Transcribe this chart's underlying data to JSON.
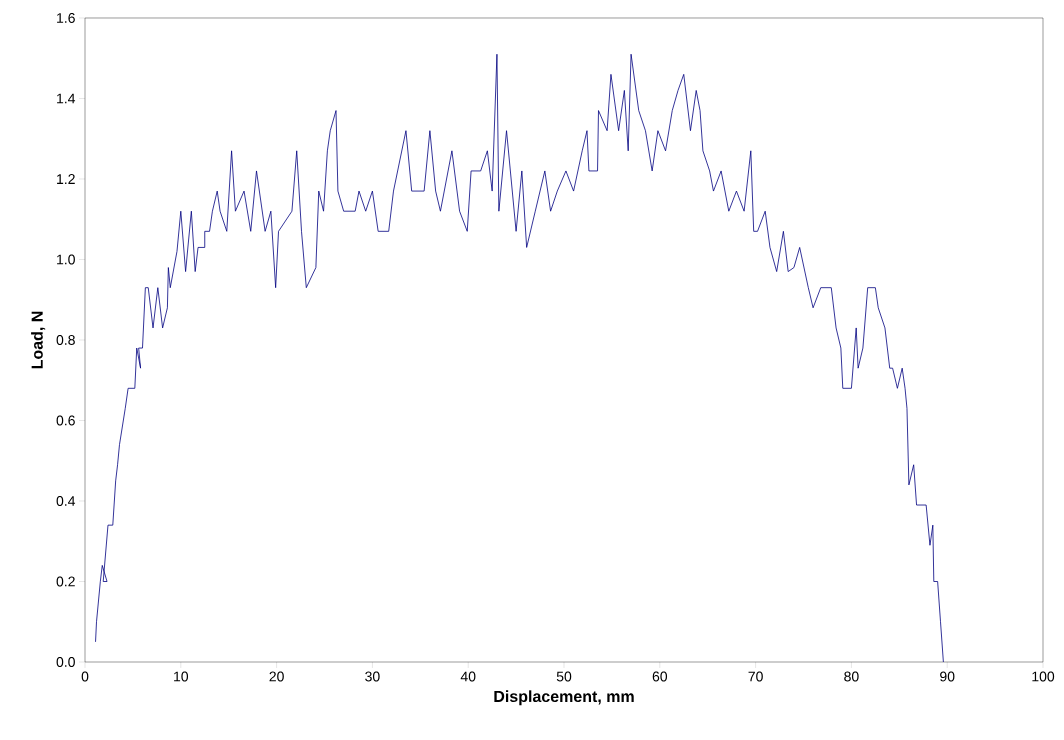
{
  "chart_data": {
    "type": "line",
    "xlabel": "Displacement, mm",
    "ylabel": "Load,  N",
    "xlim": [
      0,
      100
    ],
    "ylim": [
      0,
      1.6
    ],
    "xticks": [
      0,
      10,
      20,
      30,
      40,
      50,
      60,
      70,
      80,
      90,
      100
    ],
    "yticks": [
      {
        "value": 0,
        "label": "0.0"
      },
      {
        "value": 0.2,
        "label": "0.2"
      },
      {
        "value": 0.4,
        "label": "0.4"
      },
      {
        "value": 0.6,
        "label": "0.6"
      },
      {
        "value": 0.8,
        "label": "0.8"
      },
      {
        "value": 1.0,
        "label": "1.0"
      },
      {
        "value": 1.2,
        "label": "1.2"
      },
      {
        "value": 1.4,
        "label": "1.4"
      },
      {
        "value": 1.6,
        "label": "1.6"
      }
    ],
    "grid": false,
    "marker": "none",
    "line_style": "solid",
    "series": [
      {
        "color": "#000080",
        "x": [
          1.1,
          1.2,
          1.6,
          1.8,
          2.3,
          1.9,
          2.4,
          2.9,
          3.2,
          3.4,
          3.6,
          4.2,
          4.5,
          5.2,
          5.4,
          5.8,
          5.6,
          6.0,
          6.3,
          6.6,
          7.1,
          7.6,
          8.1,
          8.6,
          8.7,
          8.9,
          9.6,
          10.0,
          10.5,
          11.1,
          11.5,
          11.8,
          12.5,
          12.5,
          13.0,
          13.3,
          13.8,
          14.1,
          14.8,
          15.3,
          15.7,
          16.6,
          17.3,
          17.9,
          18.8,
          19.4,
          19.9,
          20.2,
          21.6,
          22.1,
          22.6,
          23.1,
          24.1,
          24.4,
          24.9,
          25.3,
          25.6,
          26.2,
          26.4,
          27.0,
          28.2,
          28.6,
          29.3,
          30.0,
          30.6,
          31.7,
          32.2,
          33.5,
          34.1,
          35.4,
          36.0,
          36.6,
          37.1,
          38.3,
          39.1,
          39.9,
          40.3,
          41.3,
          42.0,
          42.5,
          43.0,
          43.2,
          44.0,
          45.0,
          45.6,
          46.1,
          47.0,
          48.0,
          48.6,
          49.3,
          50.2,
          51.0,
          51.9,
          52.4,
          52.6,
          53.5,
          53.6,
          54.5,
          54.9,
          55.7,
          56.3,
          56.7,
          57.0,
          57.8,
          58.5,
          59.2,
          59.8,
          60.6,
          61.3,
          61.9,
          62.5,
          63.2,
          63.8,
          64.2,
          64.5,
          65.2,
          65.6,
          66.4,
          67.2,
          68.0,
          68.8,
          69.5,
          69.8,
          70.2,
          71.0,
          71.5,
          72.2,
          72.9,
          73.4,
          74.0,
          74.6,
          75.5,
          76.0,
          76.8,
          77.9,
          78.4,
          78.9,
          79.1,
          80.0,
          80.5,
          80.7,
          81.2,
          81.7,
          82.5,
          82.8,
          83.5,
          84.0,
          84.3,
          84.8,
          85.3,
          85.6,
          85.8,
          86.0,
          86.5,
          86.8,
          87.8,
          88.2,
          88.5,
          88.6,
          89.0,
          89.3,
          89.6
        ],
        "values": [
          0.05,
          0.1,
          0.2,
          0.24,
          0.2,
          0.2,
          0.34,
          0.34,
          0.45,
          0.49,
          0.54,
          0.63,
          0.68,
          0.68,
          0.78,
          0.73,
          0.78,
          0.78,
          0.93,
          0.93,
          0.83,
          0.93,
          0.83,
          0.88,
          0.98,
          0.93,
          1.02,
          1.12,
          0.97,
          1.12,
          0.97,
          1.03,
          1.03,
          1.07,
          1.07,
          1.12,
          1.17,
          1.12,
          1.07,
          1.27,
          1.12,
          1.17,
          1.07,
          1.22,
          1.07,
          1.12,
          0.93,
          1.07,
          1.12,
          1.27,
          1.07,
          0.93,
          0.98,
          1.17,
          1.12,
          1.27,
          1.32,
          1.37,
          1.17,
          1.12,
          1.12,
          1.17,
          1.12,
          1.17,
          1.07,
          1.07,
          1.17,
          1.32,
          1.17,
          1.17,
          1.32,
          1.17,
          1.12,
          1.27,
          1.12,
          1.07,
          1.22,
          1.22,
          1.27,
          1.17,
          1.51,
          1.12,
          1.32,
          1.07,
          1.22,
          1.03,
          1.12,
          1.22,
          1.12,
          1.17,
          1.22,
          1.17,
          1.27,
          1.32,
          1.22,
          1.22,
          1.37,
          1.32,
          1.46,
          1.32,
          1.42,
          1.27,
          1.51,
          1.37,
          1.32,
          1.22,
          1.32,
          1.27,
          1.37,
          1.42,
          1.46,
          1.32,
          1.42,
          1.37,
          1.27,
          1.22,
          1.17,
          1.22,
          1.12,
          1.17,
          1.12,
          1.27,
          1.07,
          1.07,
          1.12,
          1.03,
          0.97,
          1.07,
          0.97,
          0.98,
          1.03,
          0.93,
          0.88,
          0.93,
          0.93,
          0.83,
          0.78,
          0.68,
          0.68,
          0.83,
          0.73,
          0.78,
          0.93,
          0.93,
          0.88,
          0.83,
          0.73,
          0.73,
          0.68,
          0.73,
          0.68,
          0.63,
          0.44,
          0.49,
          0.39,
          0.39,
          0.29,
          0.34,
          0.2,
          0.2,
          0.1,
          0.0
        ]
      }
    ]
  }
}
